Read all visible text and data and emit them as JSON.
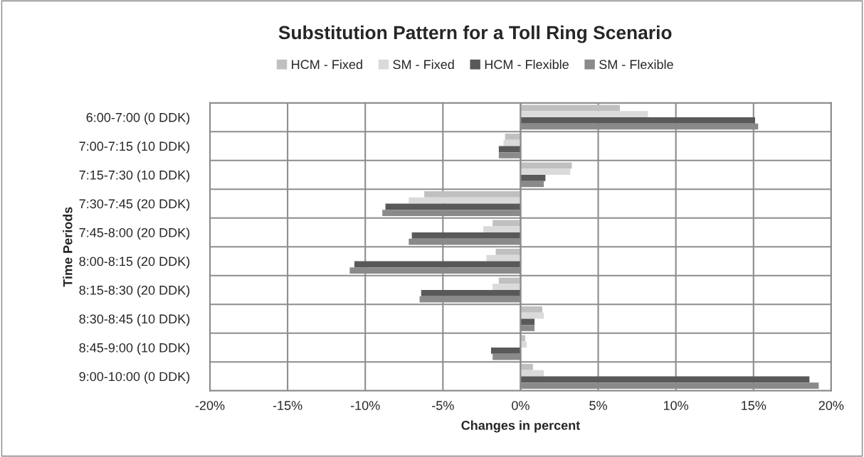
{
  "chart_data": {
    "type": "bar",
    "orientation": "horizontal",
    "title": "Substitution Pattern for a Toll Ring Scenario",
    "xlabel": "Changes in percent",
    "ylabel": "Time Periods",
    "categories": [
      "6:00-7:00 (0 DDK)",
      "7:00-7:15 (10 DDK)",
      "7:15-7:30 (10 DDK)",
      "7:30-7:45 (20 DDK)",
      "7:45-8:00 (20 DDK)",
      "8:00-8:15 (20 DDK)",
      "8:15-8:30 (20 DDK)",
      "8:30-8:45 (10 DDK)",
      "8:45-9:00 (10 DDK)",
      "9:00-10:00 (0 DDK)"
    ],
    "series": [
      {
        "name": "HCM - Fixed",
        "color": "#c0c0c0",
        "values": [
          6.4,
          -1.0,
          3.3,
          -6.2,
          -1.8,
          -1.6,
          -1.4,
          1.4,
          0.3,
          0.8
        ]
      },
      {
        "name": "SM - Fixed",
        "color": "#dadada",
        "values": [
          8.2,
          -1.1,
          3.2,
          -7.2,
          -2.4,
          -2.2,
          -1.8,
          1.5,
          0.4,
          1.5
        ]
      },
      {
        "name": "HCM - Flexible",
        "color": "#595959",
        "values": [
          15.1,
          -1.4,
          1.6,
          -8.7,
          -7.0,
          -10.7,
          -6.4,
          0.9,
          -1.9,
          18.6
        ]
      },
      {
        "name": "SM - Flexible",
        "color": "#8a8a8a",
        "values": [
          15.3,
          -1.4,
          1.5,
          -8.9,
          -7.2,
          -11.0,
          -6.5,
          0.9,
          -1.8,
          19.2
        ]
      }
    ],
    "xlim": [
      -20,
      20
    ],
    "xticks": [
      {
        "value": -20,
        "label": "-20%"
      },
      {
        "value": -15,
        "label": "-15%"
      },
      {
        "value": -10,
        "label": "-10%"
      },
      {
        "value": -5,
        "label": "-5%"
      },
      {
        "value": 0,
        "label": "0%"
      },
      {
        "value": 5,
        "label": "5%"
      },
      {
        "value": 10,
        "label": "10%"
      },
      {
        "value": 15,
        "label": "15%"
      },
      {
        "value": 20,
        "label": "20%"
      }
    ],
    "grid": true,
    "legend": "top"
  }
}
